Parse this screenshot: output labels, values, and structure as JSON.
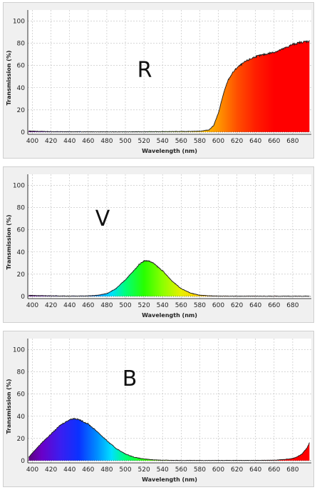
{
  "chart_data": [
    {
      "type": "area",
      "title": "R",
      "xlabel": "Wavelength (nm)",
      "ylabel": "Transmission (%)",
      "xlim": [
        395,
        700
      ],
      "ylim": [
        -2,
        110
      ],
      "xticks": [
        "400",
        "420",
        "440",
        "460",
        "480",
        "500",
        "520",
        "540",
        "560",
        "580",
        "600",
        "620",
        "640",
        "660",
        "680"
      ],
      "yticks": [
        "0",
        "20",
        "40",
        "60",
        "80",
        "100"
      ],
      "grid": true,
      "series": [
        {
          "x": [
            396,
            400,
            410,
            420,
            440,
            460,
            480,
            500,
            520,
            540,
            560,
            580,
            590,
            595,
            600,
            605,
            610,
            615,
            620,
            630,
            640,
            650,
            660,
            670,
            680,
            690,
            698
          ],
          "values": [
            1,
            0.8,
            0.6,
            0.4,
            0.3,
            0.3,
            0.2,
            0.2,
            0.3,
            0.4,
            0.5,
            0.8,
            2,
            6,
            17,
            33,
            46,
            53,
            58,
            64,
            68,
            70,
            72,
            75,
            79,
            81,
            82
          ]
        }
      ]
    },
    {
      "type": "area",
      "title": "V",
      "xlabel": "Wavelength (nm)",
      "ylabel": "Transmission (%)",
      "xlim": [
        395,
        700
      ],
      "ylim": [
        -2,
        110
      ],
      "xticks": [
        "400",
        "420",
        "440",
        "460",
        "480",
        "500",
        "520",
        "540",
        "560",
        "580",
        "600",
        "620",
        "640",
        "660",
        "680"
      ],
      "yticks": [
        "0",
        "20",
        "40",
        "60",
        "80",
        "100"
      ],
      "grid": true,
      "series": [
        {
          "x": [
            396,
            400,
            420,
            440,
            460,
            470,
            480,
            490,
            500,
            510,
            515,
            520,
            525,
            530,
            540,
            550,
            560,
            570,
            580,
            590,
            600,
            620,
            640,
            660,
            680,
            698
          ],
          "values": [
            1,
            0.8,
            0.5,
            0.3,
            0.4,
            1,
            2.5,
            7,
            15,
            24,
            29,
            32,
            32,
            30,
            23,
            14,
            7,
            3,
            1,
            0.5,
            0.3,
            0.2,
            0.2,
            0.2,
            0.2,
            0.2
          ]
        }
      ]
    },
    {
      "type": "area",
      "title": "B",
      "xlabel": "Wavelength (nm)",
      "ylabel": "Transmission (%)",
      "xlim": [
        395,
        700
      ],
      "ylim": [
        -2,
        110
      ],
      "xticks": [
        "400",
        "420",
        "440",
        "460",
        "480",
        "500",
        "520",
        "540",
        "560",
        "580",
        "600",
        "620",
        "640",
        "660",
        "680"
      ],
      "yticks": [
        "0",
        "20",
        "40",
        "60",
        "80",
        "100"
      ],
      "grid": true,
      "series": [
        {
          "x": [
            396,
            400,
            410,
            420,
            430,
            440,
            445,
            450,
            460,
            470,
            480,
            490,
            500,
            510,
            520,
            530,
            540,
            560,
            580,
            600,
            620,
            640,
            660,
            670,
            680,
            685,
            690,
            695,
            698
          ],
          "values": [
            3,
            7,
            16,
            24,
            32,
            37,
            38,
            37,
            33,
            26,
            18,
            11,
            6,
            3,
            1.5,
            0.8,
            0.4,
            0.2,
            0.2,
            0.2,
            0.2,
            0.2,
            0.4,
            1,
            2,
            3.5,
            6,
            11,
            16
          ]
        }
      ]
    }
  ]
}
